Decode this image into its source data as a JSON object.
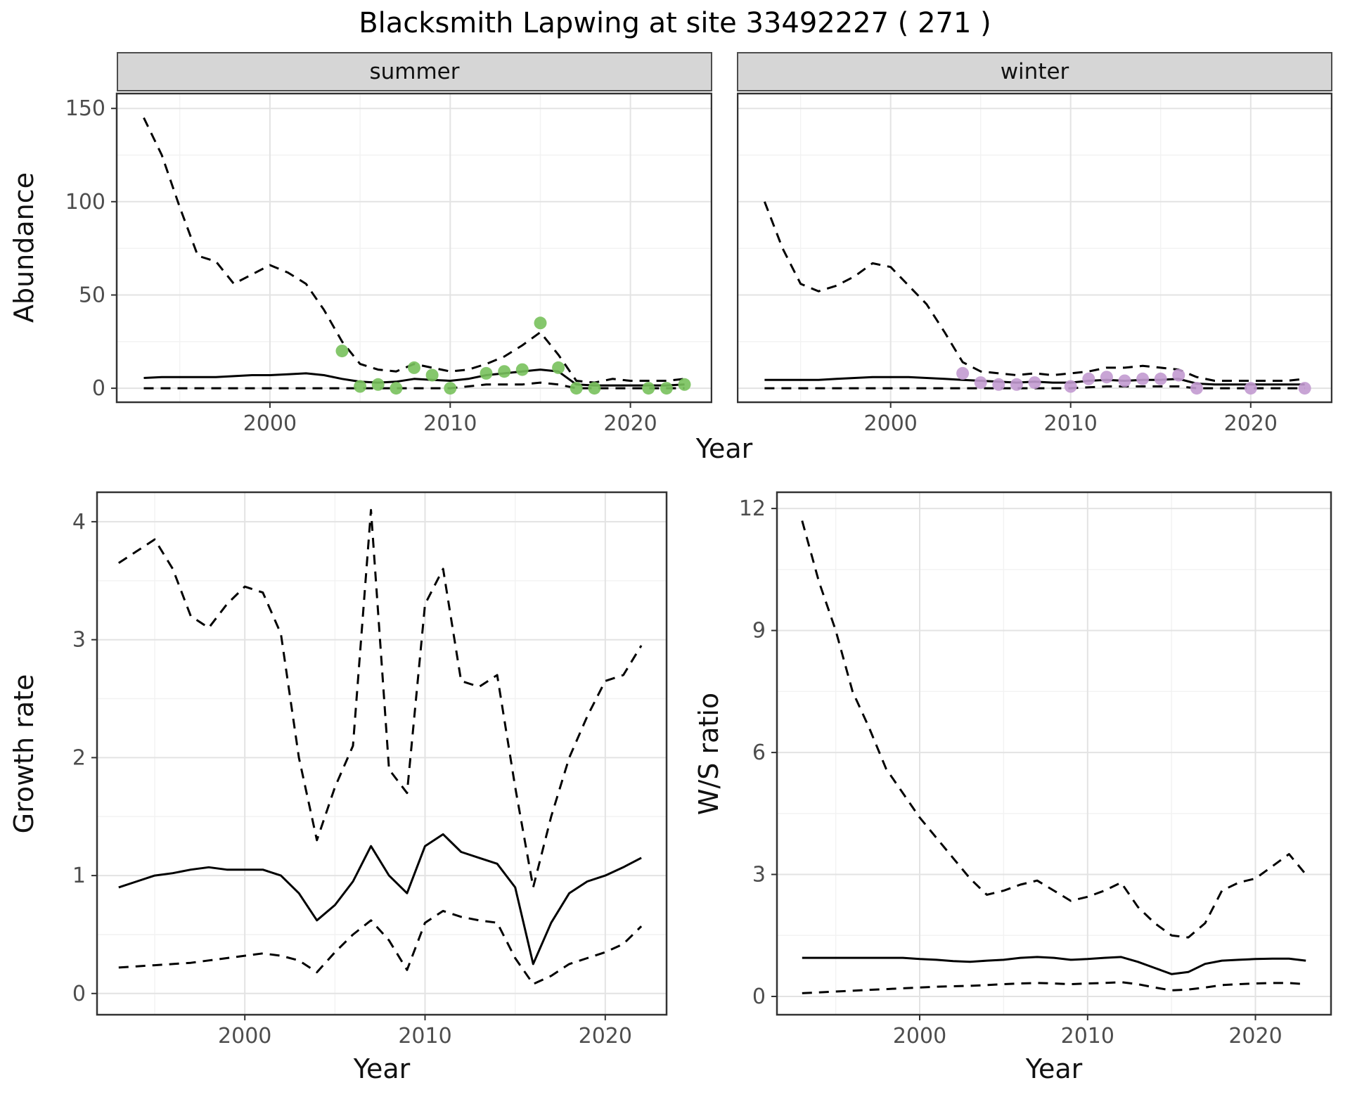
{
  "title": "Blacksmith Lapwing at site 33492227 ( 271 )",
  "labels": {
    "year": "Year",
    "abundance": "Abundance",
    "growth_rate": "Growth rate",
    "ws_ratio": "W/S ratio"
  },
  "facets": [
    {
      "label": "summer"
    },
    {
      "label": "winter"
    }
  ],
  "colors": {
    "summer_points": "#78c15c",
    "winter_points": "#c29ad0",
    "line": "#000000",
    "strip_bg": "#d6d6d6",
    "grid_major": "#e3e3e3",
    "grid_minor": "#f2f2f2",
    "panel_border": "#333333",
    "tick_mark": "#333333",
    "tick_text": "#4d4d4d"
  },
  "chart_data": [
    {
      "id": "summer_abundance",
      "type": "line",
      "facet": "summer",
      "xlabel": "Year",
      "ylabel": "Abundance",
      "xlim": [
        1991.5,
        2024.5
      ],
      "ylim": [
        -7.5,
        158
      ],
      "xticks": [
        2000,
        2010,
        2020
      ],
      "yticks": [
        0,
        50,
        100,
        150
      ],
      "xminor": [
        1995,
        2005,
        2015
      ],
      "yminor": [
        25,
        75,
        125
      ],
      "x": [
        1993,
        1994,
        1995,
        1996,
        1997,
        1998,
        1999,
        2000,
        2001,
        2002,
        2003,
        2004,
        2005,
        2006,
        2007,
        2008,
        2009,
        2010,
        2011,
        2012,
        2013,
        2014,
        2015,
        2016,
        2017,
        2018,
        2019,
        2020,
        2021,
        2022,
        2023
      ],
      "series": [
        {
          "name": "upper_credible",
          "style": "dashed",
          "values": [
            145,
            125,
            97,
            71,
            68,
            56,
            61,
            66,
            62,
            56,
            42,
            25,
            13,
            10,
            9,
            13,
            11,
            9,
            10,
            13,
            17,
            23,
            30,
            18,
            4,
            3,
            5,
            4,
            4,
            4,
            5
          ]
        },
        {
          "name": "median",
          "style": "solid",
          "values": [
            5.5,
            6,
            6,
            6,
            6,
            6.5,
            7,
            7,
            7.5,
            8,
            7,
            5,
            3.5,
            3,
            3.5,
            5,
            4.5,
            4,
            5,
            7,
            8,
            9,
            10,
            9,
            2,
            1.5,
            1.5,
            1.5,
            1.5,
            1.5,
            2
          ]
        },
        {
          "name": "lower_credible",
          "style": "dashed",
          "values": [
            0,
            0,
            0,
            0,
            0,
            0,
            0,
            0,
            0,
            0,
            0,
            0,
            0,
            0,
            0,
            0,
            0,
            0,
            1,
            2,
            2,
            2,
            3,
            2,
            0,
            0,
            0,
            0,
            0,
            0,
            0
          ]
        }
      ],
      "points": {
        "name": "observed_counts_summer",
        "color": "#78c15c",
        "x": [
          2004,
          2005,
          2006,
          2007,
          2008,
          2009,
          2010,
          2012,
          2013,
          2014,
          2015,
          2016,
          2017,
          2018,
          2021,
          2022,
          2023
        ],
        "y": [
          20,
          1,
          2,
          0,
          11,
          7,
          0,
          8,
          9,
          10,
          35,
          11,
          0,
          0,
          0,
          0,
          2
        ]
      }
    },
    {
      "id": "winter_abundance",
      "type": "line",
      "facet": "winter",
      "xlabel": "Year",
      "ylabel": "Abundance",
      "xlim": [
        1991.5,
        2024.5
      ],
      "ylim": [
        -7.5,
        158
      ],
      "xticks": [
        2000,
        2010,
        2020
      ],
      "yticks": [
        0,
        50,
        100,
        150
      ],
      "xminor": [
        1995,
        2005,
        2015
      ],
      "yminor": [
        25,
        75,
        125
      ],
      "x": [
        1993,
        1994,
        1995,
        1996,
        1997,
        1998,
        1999,
        2000,
        2001,
        2002,
        2003,
        2004,
        2005,
        2006,
        2007,
        2008,
        2009,
        2010,
        2011,
        2012,
        2013,
        2014,
        2015,
        2016,
        2017,
        2018,
        2019,
        2020,
        2021,
        2022,
        2023
      ],
      "series": [
        {
          "name": "upper_credible",
          "style": "dashed",
          "values": [
            100,
            75,
            56,
            52,
            55,
            60,
            67,
            65,
            55,
            45,
            30,
            14,
            9,
            8,
            7,
            8,
            7,
            8,
            9,
            11,
            11,
            12,
            11,
            10,
            6,
            4,
            4,
            4,
            4,
            4,
            5
          ]
        },
        {
          "name": "median",
          "style": "solid",
          "values": [
            4.5,
            4.5,
            4.5,
            4.5,
            5,
            5.5,
            6,
            6,
            6,
            5.5,
            5,
            4.5,
            4,
            3.5,
            3,
            3.5,
            3,
            3,
            4,
            4.5,
            4,
            4.5,
            4.5,
            5,
            2.5,
            2,
            2,
            2,
            2,
            2,
            2
          ]
        },
        {
          "name": "lower_credible",
          "style": "dashed",
          "values": [
            0,
            0,
            0,
            0,
            0,
            0,
            0,
            0,
            0,
            0,
            0,
            0,
            0,
            0,
            0,
            0,
            0,
            0,
            0.5,
            1,
            1,
            1,
            1,
            1,
            0,
            0,
            0,
            0,
            0,
            0,
            0
          ]
        }
      ],
      "points": {
        "name": "observed_counts_winter",
        "color": "#c29ad0",
        "x": [
          2004,
          2005,
          2006,
          2007,
          2008,
          2010,
          2011,
          2012,
          2013,
          2014,
          2015,
          2016,
          2017,
          2020,
          2023
        ],
        "y": [
          8,
          3,
          2,
          2,
          3,
          1,
          5,
          6,
          4,
          5,
          5,
          7,
          0,
          0,
          0
        ]
      }
    },
    {
      "id": "growth_rate",
      "type": "line",
      "xlabel": "Year",
      "ylabel": "Growth rate",
      "xlim": [
        1991.8,
        2023.4
      ],
      "ylim": [
        -0.18,
        4.25
      ],
      "xticks": [
        2000,
        2010,
        2020
      ],
      "yticks": [
        0,
        1,
        2,
        3,
        4
      ],
      "xminor": [
        1995,
        2005,
        2015
      ],
      "yminor": [
        0.5,
        1.5,
        2.5,
        3.5
      ],
      "x": [
        1993,
        1994,
        1995,
        1996,
        1997,
        1998,
        1999,
        2000,
        2001,
        2002,
        2003,
        2004,
        2005,
        2006,
        2007,
        2008,
        2009,
        2010,
        2011,
        2012,
        2013,
        2014,
        2015,
        2016,
        2017,
        2018,
        2019,
        2020,
        2021,
        2022
      ],
      "series": [
        {
          "name": "upper_credible",
          "style": "dashed",
          "values": [
            3.65,
            3.75,
            3.85,
            3.6,
            3.2,
            3.1,
            3.3,
            3.45,
            3.4,
            3.05,
            2,
            1.3,
            1.75,
            2.1,
            4.1,
            1.9,
            1.7,
            3.3,
            3.6,
            2.65,
            2.6,
            2.7,
            1.75,
            0.9,
            1.5,
            2,
            2.35,
            2.65,
            2.7,
            2.95
          ]
        },
        {
          "name": "median",
          "style": "solid",
          "values": [
            0.9,
            0.95,
            1,
            1.02,
            1.05,
            1.07,
            1.05,
            1.05,
            1.05,
            1,
            0.85,
            0.62,
            0.75,
            0.95,
            1.25,
            1,
            0.85,
            1.25,
            1.35,
            1.2,
            1.15,
            1.1,
            0.9,
            0.25,
            0.6,
            0.85,
            0.95,
            1,
            1.07,
            1.15
          ]
        },
        {
          "name": "lower_credible",
          "style": "dashed",
          "values": [
            0.22,
            0.23,
            0.24,
            0.25,
            0.26,
            0.28,
            0.3,
            0.32,
            0.34,
            0.32,
            0.28,
            0.18,
            0.35,
            0.5,
            0.62,
            0.45,
            0.2,
            0.6,
            0.7,
            0.65,
            0.62,
            0.6,
            0.3,
            0.08,
            0.15,
            0.25,
            0.3,
            0.35,
            0.42,
            0.57
          ]
        }
      ]
    },
    {
      "id": "ws_ratio",
      "type": "line",
      "xlabel": "Year",
      "ylabel": "W/S ratio",
      "xlim": [
        1991.5,
        2024.5
      ],
      "ylim": [
        -0.45,
        12.4
      ],
      "xticks": [
        2000,
        2010,
        2020
      ],
      "yticks": [
        0,
        3,
        6,
        9,
        12
      ],
      "xminor": [
        1995,
        2005,
        2015
      ],
      "yminor": [
        1.5,
        4.5,
        7.5,
        10.5
      ],
      "x": [
        1993,
        1994,
        1995,
        1996,
        1997,
        1998,
        1999,
        2000,
        2001,
        2002,
        2003,
        2004,
        2005,
        2006,
        2007,
        2008,
        2009,
        2010,
        2011,
        2012,
        2013,
        2014,
        2015,
        2016,
        2017,
        2018,
        2019,
        2020,
        2021,
        2022,
        2023
      ],
      "series": [
        {
          "name": "upper_credible",
          "style": "dashed",
          "values": [
            11.7,
            10.2,
            9,
            7.5,
            6.6,
            5.6,
            5,
            4.4,
            3.9,
            3.4,
            2.9,
            2.5,
            2.6,
            2.75,
            2.85,
            2.6,
            2.35,
            2.45,
            2.6,
            2.8,
            2.2,
            1.8,
            1.5,
            1.45,
            1.8,
            2.6,
            2.8,
            2.9,
            3.2,
            3.5,
            3
          ]
        },
        {
          "name": "median",
          "style": "solid",
          "values": [
            0.95,
            0.95,
            0.95,
            0.95,
            0.95,
            0.95,
            0.95,
            0.92,
            0.9,
            0.87,
            0.85,
            0.88,
            0.9,
            0.95,
            0.97,
            0.95,
            0.9,
            0.92,
            0.95,
            0.97,
            0.85,
            0.7,
            0.55,
            0.6,
            0.8,
            0.88,
            0.9,
            0.92,
            0.93,
            0.93,
            0.88
          ]
        },
        {
          "name": "lower_credible",
          "style": "dashed",
          "values": [
            0.08,
            0.1,
            0.12,
            0.14,
            0.16,
            0.18,
            0.2,
            0.22,
            0.24,
            0.25,
            0.26,
            0.28,
            0.3,
            0.32,
            0.33,
            0.32,
            0.3,
            0.32,
            0.33,
            0.35,
            0.3,
            0.22,
            0.15,
            0.17,
            0.22,
            0.28,
            0.3,
            0.32,
            0.33,
            0.33,
            0.3
          ]
        }
      ]
    }
  ]
}
